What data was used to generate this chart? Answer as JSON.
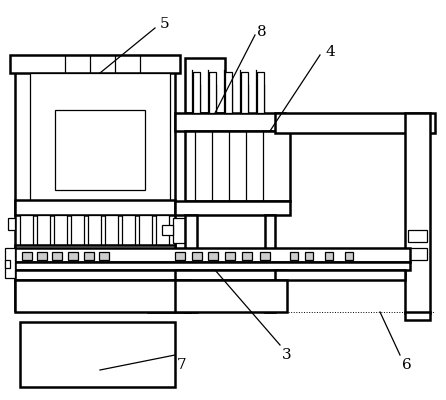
{
  "background_color": "#ffffff",
  "line_color": "#000000",
  "lw_thick": 1.8,
  "lw_thin": 0.9,
  "figure_width": 4.46,
  "figure_height": 4.0,
  "dpi": 100
}
